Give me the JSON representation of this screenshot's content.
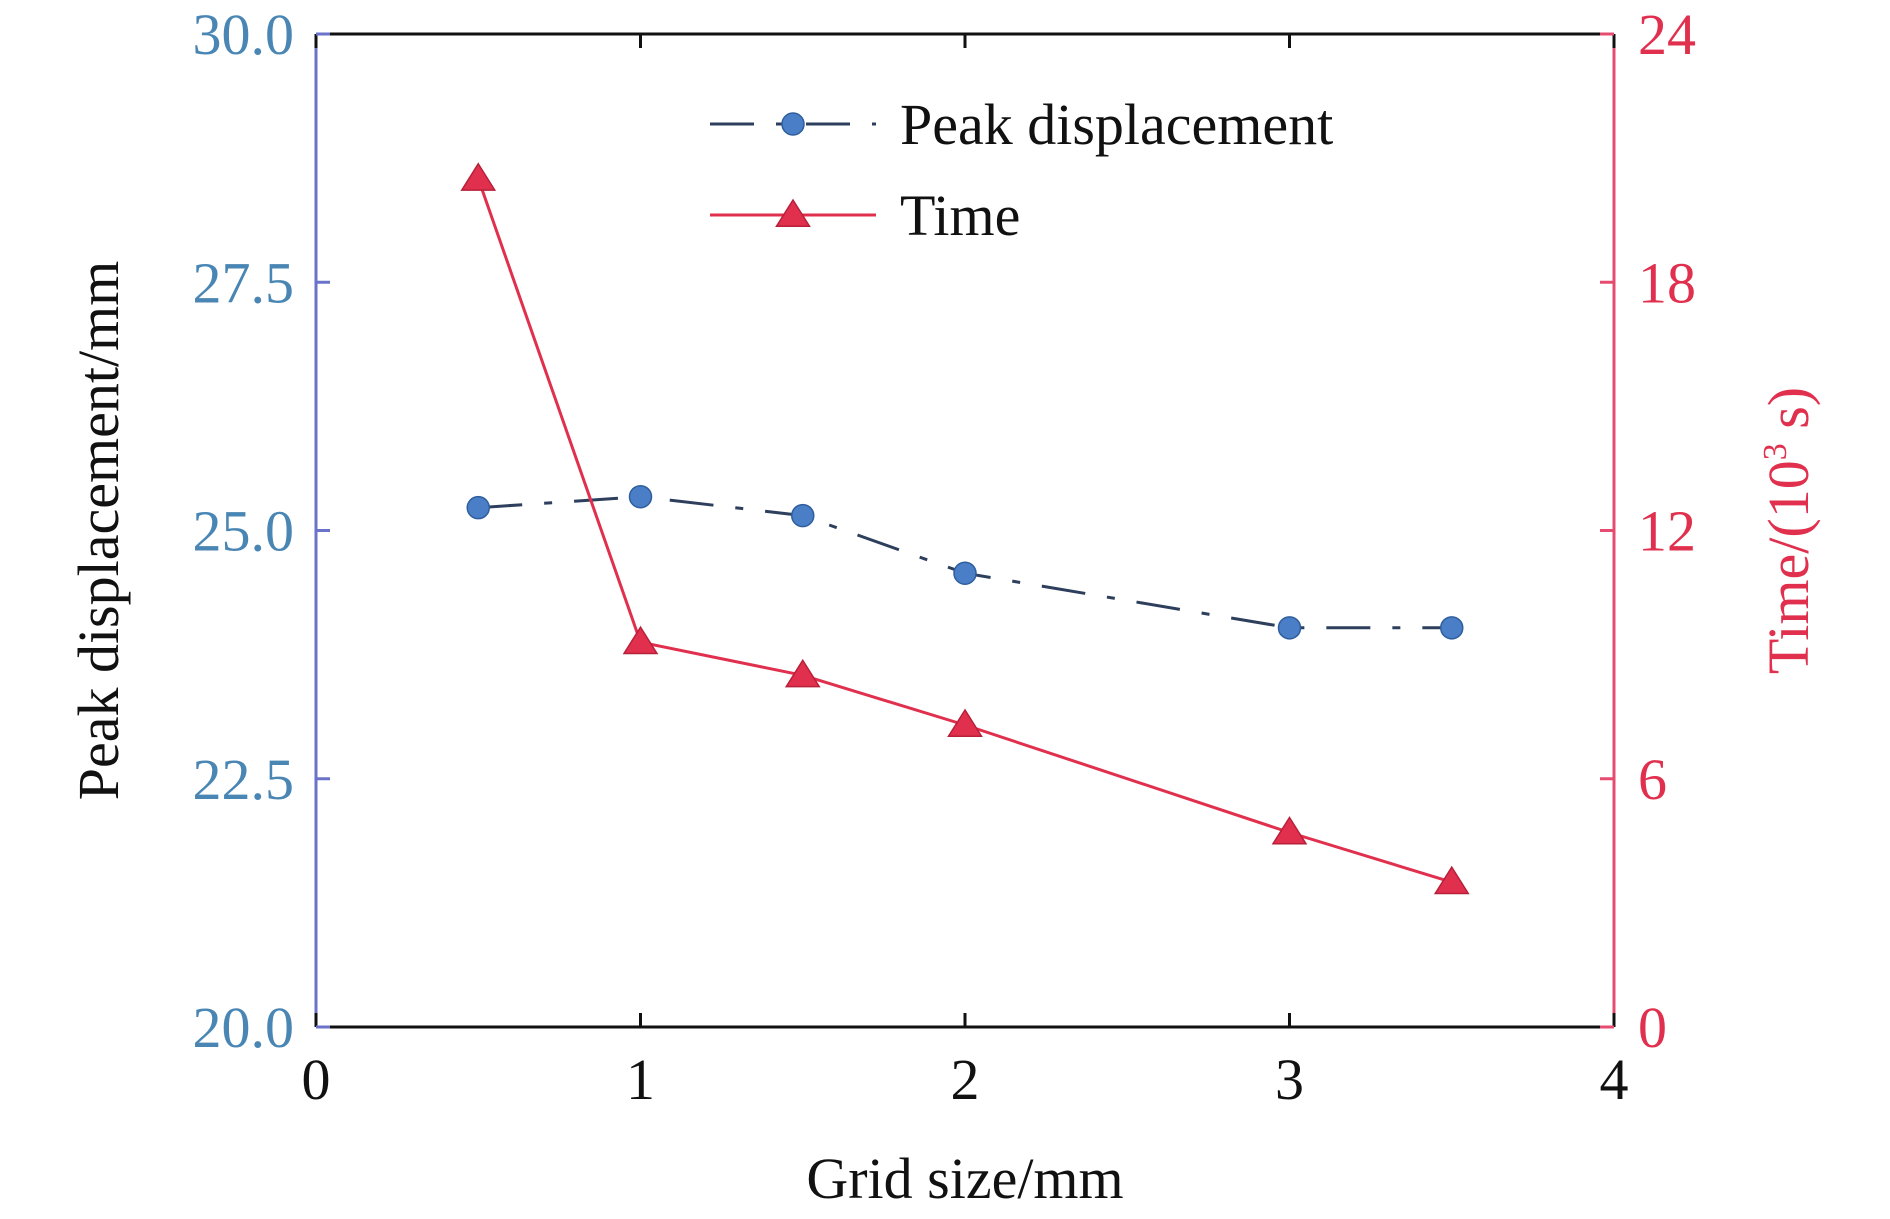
{
  "chart_data": {
    "type": "line",
    "xlabel": "Grid size/mm",
    "ylabel_left": "Peak displacement/mm",
    "ylabel_right": {
      "base": "Time/(10",
      "superscript": "3",
      "tail": " s)"
    },
    "xlim": [
      0,
      4
    ],
    "ylim_left": [
      20.0,
      30.0
    ],
    "ylim_right": [
      0,
      24
    ],
    "x_ticks": [
      "0",
      "1",
      "2",
      "3",
      "4"
    ],
    "x_tick_values": [
      0,
      1,
      2,
      3,
      4
    ],
    "y_left_ticks": [
      "20.0",
      "22.5",
      "25.0",
      "27.5",
      "30.0"
    ],
    "y_left_tick_values": [
      20.0,
      22.5,
      25.0,
      27.5,
      30.0
    ],
    "y_right_ticks": [
      "0",
      "6",
      "12",
      "18",
      "24"
    ],
    "y_right_tick_values": [
      0,
      6,
      12,
      18,
      24
    ],
    "grid": false,
    "legend_position": "top-center",
    "series": [
      {
        "name": "Peak displacement",
        "axis": "left",
        "style": "dash-dot",
        "marker": "circle",
        "color": "#4a7fc8",
        "x": [
          0.5,
          1.0,
          1.5,
          2.0,
          3.0,
          3.5
        ],
        "y": [
          25.23,
          25.34,
          25.15,
          24.57,
          24.02,
          24.02
        ]
      },
      {
        "name": "Time",
        "axis": "right",
        "style": "solid",
        "marker": "triangle",
        "color": "#e0304e",
        "x": [
          0.5,
          1.0,
          1.5,
          2.0,
          3.0,
          3.5
        ],
        "y": [
          20.5,
          9.3,
          8.5,
          7.3,
          4.7,
          3.5
        ]
      }
    ],
    "colors": {
      "left_axis": "#6a73c9",
      "left_ticks": "#4a86b4",
      "right_axis": "#e64c70",
      "right_ticks": "#e0304e",
      "frame": "#111111"
    }
  }
}
